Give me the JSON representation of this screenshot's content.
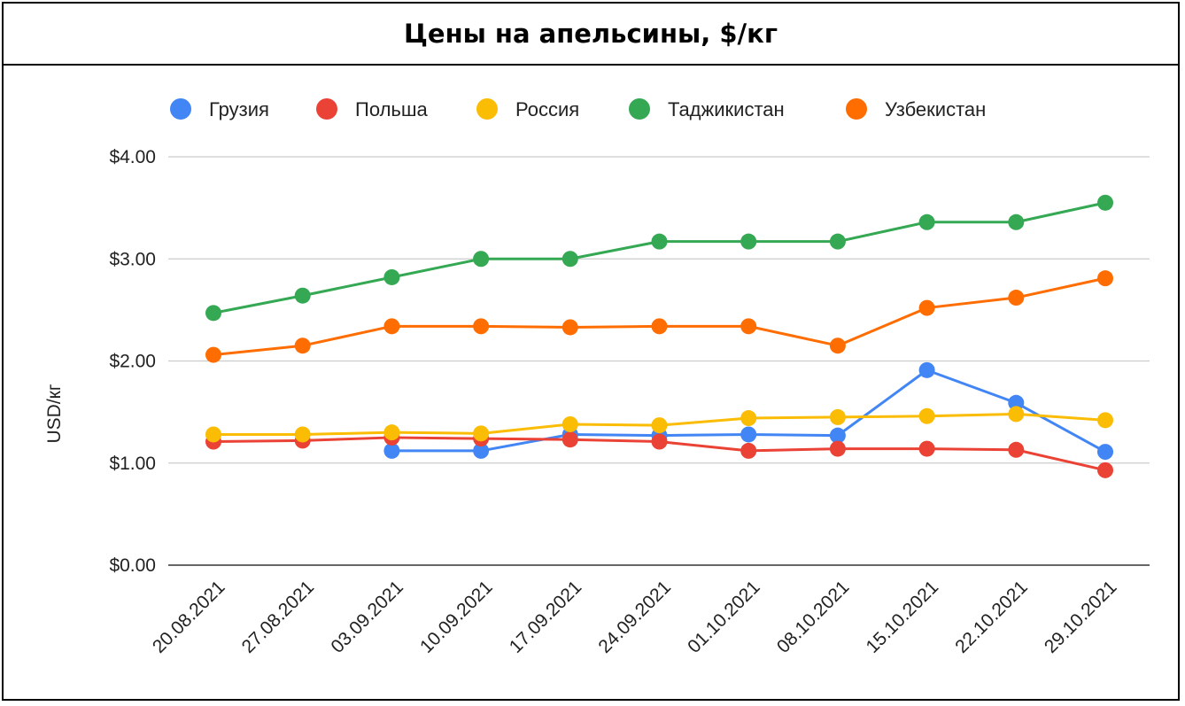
{
  "chart_data": {
    "type": "line",
    "title": "Цены на апельсины, $/кг",
    "ylabel": "USD/кг",
    "xlabel": "",
    "categories": [
      "20.08.2021",
      "27.08.2021",
      "03.09.2021",
      "10.09.2021",
      "17.09.2021",
      "24.09.2021",
      "01.10.2021",
      "08.10.2021",
      "15.10.2021",
      "22.10.2021",
      "29.10.2021"
    ],
    "ylim": [
      0,
      4
    ],
    "yticks": [
      "$0.00",
      "$1.00",
      "$2.00",
      "$3.00",
      "$4.00"
    ],
    "grid": true,
    "legend_position": "top",
    "series": [
      {
        "name": "Грузия",
        "color": "#4285F4",
        "values": [
          null,
          null,
          1.12,
          1.12,
          1.28,
          1.27,
          1.28,
          1.27,
          1.91,
          1.59,
          1.11
        ]
      },
      {
        "name": "Польша",
        "color": "#EA4335",
        "values": [
          1.21,
          1.22,
          1.25,
          1.24,
          1.23,
          1.21,
          1.12,
          1.14,
          1.14,
          1.13,
          0.93
        ]
      },
      {
        "name": "Россия",
        "color": "#FBBC04",
        "values": [
          1.28,
          1.28,
          1.3,
          1.29,
          1.38,
          1.37,
          1.44,
          1.45,
          1.46,
          1.48,
          1.42
        ]
      },
      {
        "name": "Таджикистан",
        "color": "#34A853",
        "values": [
          2.47,
          2.64,
          2.82,
          3.0,
          3.0,
          3.17,
          3.17,
          3.17,
          3.36,
          3.36,
          3.55
        ]
      },
      {
        "name": "Узбекистан",
        "color": "#FF6D01",
        "values": [
          2.06,
          2.15,
          2.34,
          2.34,
          2.33,
          2.34,
          2.34,
          2.15,
          2.52,
          2.62,
          2.81
        ]
      }
    ]
  }
}
